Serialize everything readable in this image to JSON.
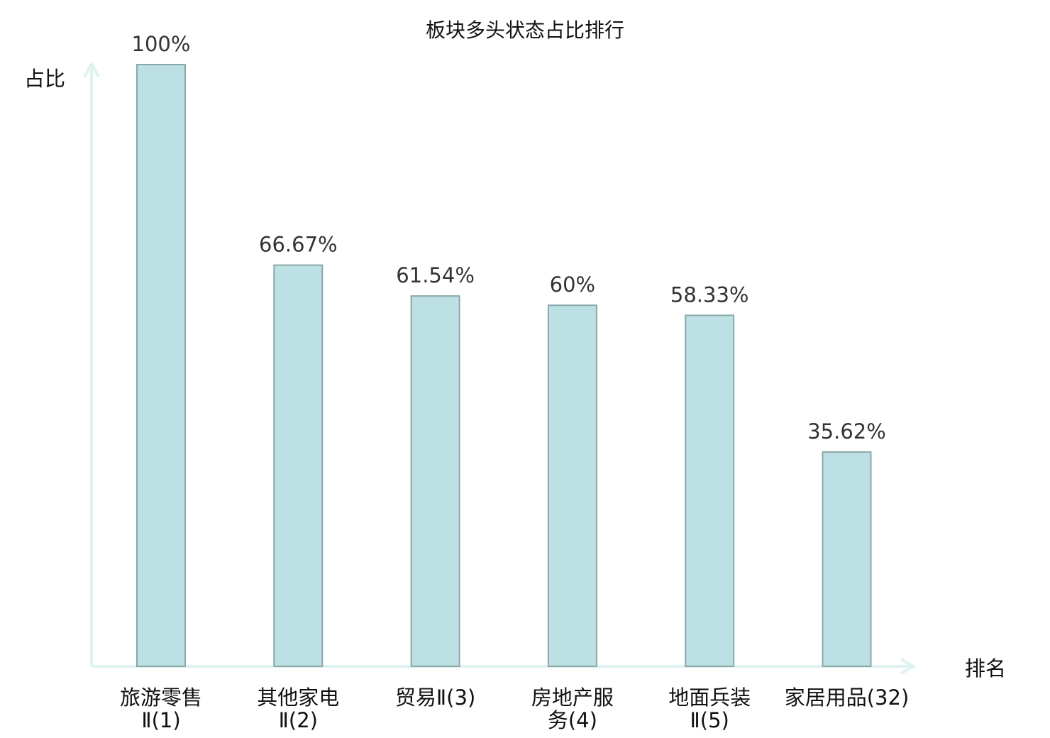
{
  "chart_data": {
    "type": "bar",
    "title": "板块多头状态占比排行",
    "xlabel": "排名",
    "ylabel": "占比",
    "ylim": [
      0,
      100
    ],
    "grid": false,
    "categories": [
      [
        "旅游零售",
        "Ⅱ(1)"
      ],
      [
        "其他家电",
        "Ⅱ(2)"
      ],
      [
        "贸易Ⅱ(3)"
      ],
      [
        "房地产服",
        "务(4)"
      ],
      [
        "地面兵装",
        "Ⅱ(5)"
      ],
      [
        "家居用品(32)"
      ]
    ],
    "values": [
      100,
      66.67,
      61.54,
      60,
      58.33,
      35.62
    ],
    "value_labels": [
      "100%",
      "66.67%",
      "61.54%",
      "60%",
      "58.33%",
      "35.62%"
    ],
    "highlight_index": 5,
    "colors": {
      "bar_fill": "#bce0e3",
      "bar_stroke": "#8aa8aa",
      "axis": "#def2ef",
      "highlight": "#e01010",
      "text": "#111111"
    }
  }
}
